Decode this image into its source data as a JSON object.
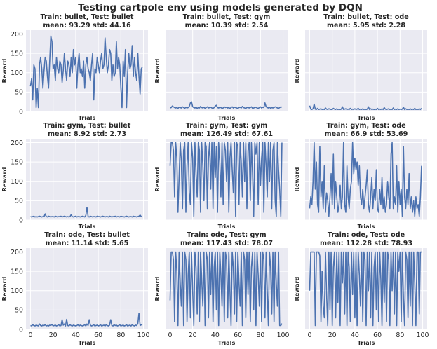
{
  "figure": {
    "title": "Testing cartpole env using models generated by DQN"
  },
  "colors": {
    "panel_bg": "#eaeaf2",
    "grid": "#ffffff",
    "line": "#4c72b0",
    "text": "#262626"
  },
  "chart_data": [
    {
      "type": "line",
      "title": "Train: bullet, Test: bullet",
      "subtitle": "mean: 93.29 std: 44.16",
      "xlabel": "Trials",
      "ylabel": "Reward",
      "xlim": [
        -4,
        104
      ],
      "ylim": [
        0,
        210
      ],
      "xticks": [
        0,
        20,
        40,
        60,
        80,
        100
      ],
      "yticks": [
        0,
        50,
        100,
        150,
        200
      ],
      "show_xticklabels": false,
      "show_yticklabels": true,
      "values": [
        65,
        85,
        30,
        120,
        110,
        10,
        60,
        10,
        120,
        140,
        110,
        60,
        105,
        140,
        130,
        90,
        60,
        130,
        195,
        180,
        110,
        120,
        80,
        140,
        110,
        100,
        130,
        120,
        75,
        105,
        150,
        110,
        80,
        130,
        120,
        90,
        140,
        100,
        160,
        120,
        140,
        60,
        120,
        150,
        100,
        110,
        90,
        130,
        60,
        120,
        140,
        110,
        100,
        80,
        120,
        150,
        30,
        110,
        100,
        140,
        120,
        100,
        130,
        150,
        110,
        120,
        190,
        140,
        100,
        120,
        160,
        150,
        80,
        120,
        90,
        100,
        180,
        110,
        140,
        120,
        60,
        10,
        130,
        90,
        160,
        10,
        100,
        150,
        110,
        120,
        170,
        90,
        140,
        100,
        80,
        150,
        90,
        45,
        110,
        115
      ]
    },
    {
      "type": "line",
      "title": "Train: bullet, Test: gym",
      "subtitle": "mean: 10.39 std: 2.54",
      "xlabel": "Trials",
      "ylabel": "Reward",
      "xlim": [
        -4,
        104
      ],
      "ylim": [
        0,
        210
      ],
      "xticks": [
        0,
        20,
        40,
        60,
        80,
        100
      ],
      "yticks": [
        0,
        50,
        100,
        150,
        200
      ],
      "show_xticklabels": false,
      "show_yticklabels": false,
      "values": [
        9,
        10,
        14,
        12,
        10,
        9,
        10,
        8,
        11,
        10,
        9,
        12,
        10,
        8,
        11,
        9,
        10,
        13,
        22,
        25,
        12,
        10,
        9,
        11,
        8,
        10,
        9,
        13,
        10,
        9,
        11,
        8,
        10,
        12,
        9,
        10,
        11,
        9,
        8,
        10,
        14,
        16,
        10,
        9,
        11,
        10,
        8,
        9,
        12,
        10,
        11,
        9,
        10,
        8,
        10,
        12,
        9,
        11,
        10,
        9,
        8,
        10,
        11,
        9,
        13,
        10,
        9,
        8,
        10,
        11,
        9,
        10,
        12,
        8,
        9,
        10,
        11,
        9,
        8,
        10,
        12,
        9,
        11,
        10,
        22,
        12,
        10,
        9,
        11,
        8,
        10,
        9,
        10,
        12,
        11,
        9,
        8,
        10,
        12,
        11
      ]
    },
    {
      "type": "line",
      "title": "Train: bullet, Test: ode",
      "subtitle": "mean: 5.95 std: 2.28",
      "xlabel": "Trials",
      "ylabel": "Reward",
      "xlim": [
        -4,
        104
      ],
      "ylim": [
        0,
        210
      ],
      "xticks": [
        0,
        20,
        40,
        60,
        80,
        100
      ],
      "yticks": [
        0,
        50,
        100,
        150,
        200
      ],
      "show_xticklabels": false,
      "show_yticklabels": false,
      "values": [
        15,
        6,
        5,
        7,
        19,
        6,
        5,
        8,
        5,
        6,
        7,
        5,
        6,
        5,
        9,
        6,
        5,
        7,
        6,
        5,
        5,
        8,
        6,
        5,
        7,
        5,
        6,
        5,
        6,
        12,
        5,
        6,
        7,
        5,
        6,
        5,
        8,
        5,
        6,
        5,
        7,
        5,
        6,
        8,
        5,
        6,
        5,
        7,
        5,
        6,
        5,
        6,
        12,
        5,
        7,
        5,
        6,
        5,
        6,
        5,
        8,
        5,
        6,
        5,
        7,
        5,
        10,
        6,
        5,
        6,
        7,
        5,
        6,
        5,
        9,
        5,
        6,
        5,
        7,
        5,
        6,
        5,
        6,
        11,
        5,
        7,
        5,
        6,
        5,
        7,
        5,
        6,
        5,
        8,
        5,
        6,
        5,
        7,
        5,
        8
      ]
    },
    {
      "type": "line",
      "title": "Train: gym, Test: bullet",
      "subtitle": "mean: 8.92 std: 2.73",
      "xlabel": "Trials",
      "ylabel": "Reward",
      "xlim": [
        -4,
        104
      ],
      "ylim": [
        0,
        210
      ],
      "xticks": [
        0,
        20,
        40,
        60,
        80,
        100
      ],
      "yticks": [
        0,
        50,
        100,
        150,
        200
      ],
      "show_xticklabels": false,
      "show_yticklabels": true,
      "values": [
        9,
        8,
        9,
        10,
        8,
        9,
        8,
        9,
        10,
        9,
        8,
        9,
        9,
        16,
        9,
        8,
        10,
        9,
        8,
        9,
        9,
        8,
        10,
        9,
        8,
        9,
        9,
        10,
        8,
        9,
        10,
        9,
        8,
        9,
        8,
        9,
        14,
        9,
        8,
        9,
        10,
        8,
        9,
        9,
        8,
        9,
        10,
        9,
        8,
        12,
        33,
        9,
        8,
        10,
        9,
        8,
        9,
        9,
        8,
        10,
        9,
        9,
        8,
        9,
        10,
        9,
        8,
        9,
        9,
        8,
        10,
        9,
        8,
        9,
        9,
        10,
        8,
        9,
        9,
        8,
        10,
        9,
        9,
        8,
        9,
        10,
        9,
        8,
        9,
        9,
        8,
        10,
        9,
        9,
        8,
        9,
        10,
        13,
        9,
        9
      ]
    },
    {
      "type": "line",
      "title": "Train: gym, Test: gym",
      "subtitle": "mean: 126.49 std: 67.61",
      "xlabel": "Trials",
      "ylabel": "Reward",
      "xlim": [
        -4,
        104
      ],
      "ylim": [
        0,
        210
      ],
      "xticks": [
        0,
        20,
        40,
        60,
        80,
        100
      ],
      "yticks": [
        0,
        50,
        100,
        150,
        200
      ],
      "show_xticklabels": false,
      "show_yticklabels": false,
      "values": [
        140,
        200,
        200,
        180,
        60,
        200,
        160,
        20,
        110,
        200,
        150,
        30,
        180,
        200,
        20,
        140,
        200,
        70,
        40,
        200,
        160,
        10,
        200,
        120,
        60,
        200,
        180,
        20,
        200,
        140,
        50,
        200,
        190,
        30,
        160,
        200,
        80,
        200,
        30,
        200,
        110,
        190,
        20,
        200,
        150,
        60,
        200,
        40,
        200,
        180,
        100,
        200,
        20,
        160,
        200,
        130,
        70,
        200,
        10,
        200,
        190,
        40,
        200,
        150,
        60,
        200,
        100,
        200,
        30,
        180,
        200,
        50,
        200,
        120,
        10,
        200,
        170,
        200,
        40,
        200,
        90,
        160,
        200,
        20,
        200,
        140,
        60,
        200,
        100,
        200,
        30,
        180,
        200,
        50,
        10,
        200,
        130,
        80,
        10,
        200
      ]
    },
    {
      "type": "line",
      "title": "Train: gym, Test: ode",
      "subtitle": "mean: 66.9 std: 53.69",
      "xlabel": "Trials",
      "ylabel": "Reward",
      "xlim": [
        -4,
        104
      ],
      "ylim": [
        0,
        210
      ],
      "xticks": [
        0,
        20,
        40,
        60,
        80,
        100
      ],
      "yticks": [
        0,
        50,
        100,
        150,
        200
      ],
      "show_xticklabels": false,
      "show_yticklabels": false,
      "values": [
        30,
        60,
        40,
        100,
        200,
        80,
        150,
        40,
        20,
        190,
        60,
        100,
        30,
        140,
        20,
        70,
        50,
        10,
        60,
        120,
        40,
        170,
        30,
        100,
        60,
        20,
        40,
        90,
        30,
        60,
        200,
        40,
        20,
        140,
        60,
        30,
        80,
        100,
        200,
        120,
        160,
        130,
        150,
        90,
        140,
        60,
        40,
        80,
        30,
        60,
        90,
        130,
        40,
        20,
        60,
        110,
        30,
        80,
        50,
        130,
        30,
        20,
        80,
        40,
        110,
        30,
        60,
        20,
        40,
        100,
        60,
        30,
        170,
        200,
        30,
        60,
        40,
        140,
        20,
        100,
        40,
        80,
        10,
        190,
        60,
        30,
        80,
        40,
        120,
        30,
        60,
        20,
        50,
        10,
        60,
        30,
        40,
        10,
        60,
        140
      ]
    },
    {
      "type": "line",
      "title": "Train: ode, Test: bullet",
      "subtitle": "mean: 11.14 std: 5.65",
      "xlabel": "Trials",
      "ylabel": "Reward",
      "xlim": [
        -4,
        104
      ],
      "ylim": [
        0,
        210
      ],
      "xticks": [
        0,
        20,
        40,
        60,
        80,
        100
      ],
      "yticks": [
        0,
        50,
        100,
        150,
        200
      ],
      "show_xticklabels": true,
      "show_yticklabels": true,
      "values": [
        10,
        9,
        12,
        10,
        9,
        11,
        10,
        9,
        14,
        10,
        9,
        11,
        10,
        12,
        9,
        10,
        9,
        11,
        10,
        13,
        9,
        10,
        11,
        9,
        10,
        12,
        9,
        10,
        25,
        11,
        14,
        9,
        26,
        10,
        9,
        12,
        10,
        9,
        11,
        10,
        9,
        10,
        12,
        9,
        11,
        10,
        9,
        10,
        12,
        9,
        14,
        10,
        25,
        11,
        9,
        10,
        12,
        9,
        10,
        11,
        9,
        10,
        12,
        9,
        10,
        11,
        9,
        12,
        10,
        9,
        11,
        25,
        10,
        9,
        12,
        10,
        11,
        9,
        10,
        12,
        9,
        10,
        11,
        9,
        10,
        12,
        9,
        10,
        11,
        9,
        12,
        10,
        9,
        11,
        10,
        15,
        42,
        10,
        12,
        11
      ]
    },
    {
      "type": "line",
      "title": "Train: ode, Test: gym",
      "subtitle": "mean: 117.43 std: 78.07",
      "xlabel": "Trials",
      "ylabel": "Reward",
      "xlim": [
        -4,
        104
      ],
      "ylim": [
        0,
        210
      ],
      "xticks": [
        0,
        20,
        40,
        60,
        80,
        100
      ],
      "yticks": [
        0,
        50,
        100,
        150,
        200
      ],
      "show_xticklabels": true,
      "show_yticklabels": false,
      "values": [
        75,
        200,
        200,
        180,
        20,
        200,
        150,
        10,
        200,
        120,
        60,
        200,
        10,
        200,
        180,
        20,
        140,
        200,
        30,
        200,
        100,
        10,
        200,
        160,
        40,
        200,
        20,
        200,
        130,
        60,
        200,
        10,
        200,
        180,
        30,
        200,
        90,
        200,
        20,
        160,
        200,
        50,
        200,
        10,
        200,
        140,
        60,
        200,
        20,
        200,
        180,
        30,
        200,
        100,
        10,
        200,
        160,
        40,
        200,
        20,
        200,
        120,
        60,
        200,
        10,
        200,
        180,
        30,
        200,
        90,
        200,
        20,
        160,
        200,
        50,
        200,
        10,
        200,
        140,
        60,
        200,
        20,
        200,
        180,
        30,
        200,
        100,
        10,
        200,
        160,
        40,
        200,
        20,
        200,
        120,
        60,
        200,
        10,
        10,
        15
      ]
    },
    {
      "type": "line",
      "title": "Train: ode, Test: ode",
      "subtitle": "mean: 112.28 std: 78.93",
      "xlabel": "Trials",
      "ylabel": "Reward",
      "xlim": [
        -4,
        104
      ],
      "ylim": [
        0,
        210
      ],
      "xticks": [
        0,
        20,
        40,
        60,
        80,
        100
      ],
      "yticks": [
        0,
        50,
        100,
        150,
        200
      ],
      "show_xticklabels": true,
      "show_yticklabels": false,
      "values": [
        100,
        200,
        200,
        200,
        200,
        10,
        200,
        200,
        200,
        190,
        20,
        150,
        60,
        30,
        200,
        90,
        10,
        200,
        50,
        200,
        10,
        160,
        200,
        30,
        200,
        70,
        200,
        10,
        200,
        120,
        200,
        40,
        200,
        10,
        200,
        160,
        20,
        200,
        90,
        200,
        30,
        200,
        10,
        200,
        140,
        60,
        200,
        20,
        200,
        180,
        10,
        200,
        100,
        200,
        30,
        200,
        10,
        160,
        200,
        50,
        200,
        20,
        200,
        130,
        10,
        200,
        70,
        200,
        20,
        200,
        180,
        10,
        200,
        100,
        200,
        40,
        200,
        10,
        200,
        150,
        200,
        20,
        200,
        80,
        10,
        200,
        180,
        30,
        200,
        60,
        200,
        10,
        200,
        120,
        10,
        200,
        200,
        40,
        200,
        200
      ]
    }
  ]
}
